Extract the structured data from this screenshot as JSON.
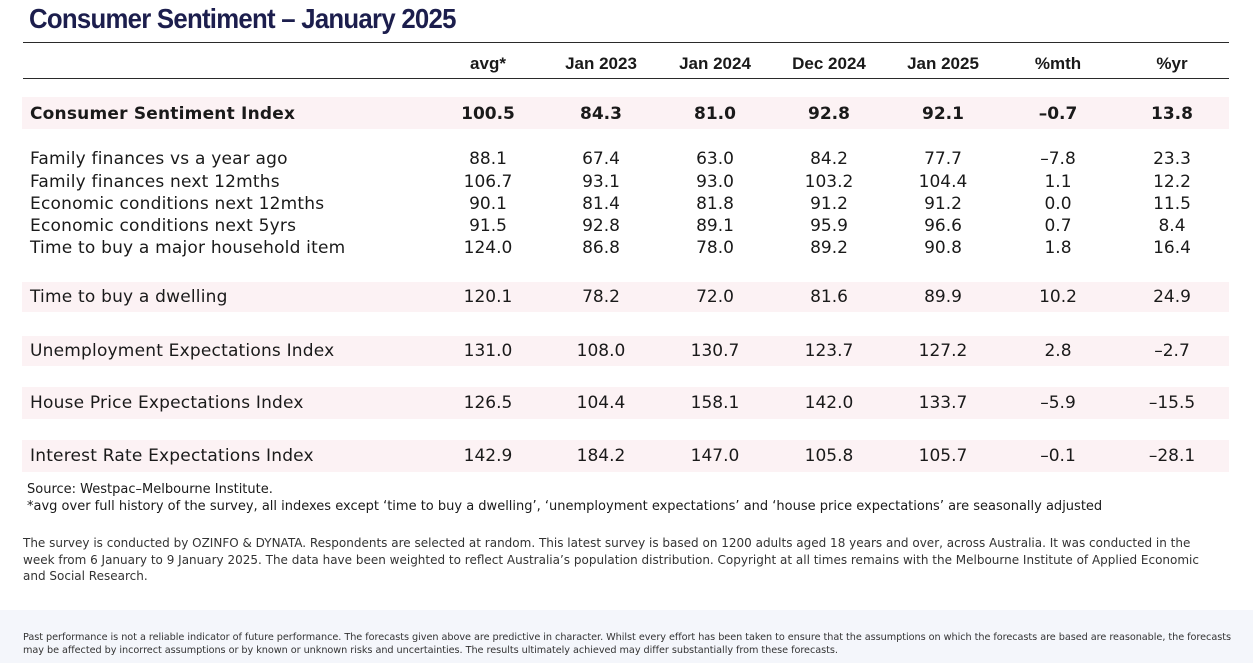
{
  "title": "Consumer Sentiment – January 2025",
  "columns": [
    "avg*",
    "Jan 2023",
    "Jan 2024",
    "Dec 2024",
    "Jan 2025",
    "%mth",
    "%yr"
  ],
  "rows": [
    {
      "label": "Consumer Sentiment Index",
      "values": [
        "100.5",
        "84.3",
        "81.0",
        "92.8",
        "92.1",
        "–0.7",
        "13.8"
      ]
    },
    {
      "label": "Family finances vs a year ago",
      "values": [
        "88.1",
        "67.4",
        "63.0",
        "84.2",
        "77.7",
        "–7.8",
        "23.3"
      ]
    },
    {
      "label": "Family finances next 12mths",
      "values": [
        "106.7",
        "93.1",
        "93.0",
        "103.2",
        "104.4",
        "1.1",
        "12.2"
      ]
    },
    {
      "label": "Economic conditions next 12mths",
      "values": [
        "90.1",
        "81.4",
        "81.8",
        "91.2",
        "91.2",
        "0.0",
        "11.5"
      ]
    },
    {
      "label": "Economic conditions next 5yrs",
      "values": [
        "91.5",
        "92.8",
        "89.1",
        "95.9",
        "96.6",
        "0.7",
        "8.4"
      ]
    },
    {
      "label": "Time to buy a major household item",
      "values": [
        "124.0",
        "86.8",
        "78.0",
        "89.2",
        "90.8",
        "1.8",
        "16.4"
      ]
    },
    {
      "label": "Time to buy a dwelling",
      "values": [
        "120.1",
        "78.2",
        "72.0",
        "81.6",
        "89.9",
        "10.2",
        "24.9"
      ]
    },
    {
      "label": "Unemployment Expectations Index",
      "values": [
        "131.0",
        "108.0",
        "130.7",
        "123.7",
        "127.2",
        "2.8",
        "–2.7"
      ]
    },
    {
      "label": "House Price Expectations Index",
      "values": [
        "126.5",
        "104.4",
        "158.1",
        "142.0",
        "133.7",
        "–5.9",
        "–15.5"
      ]
    },
    {
      "label": "Interest Rate Expectations Index",
      "values": [
        "142.9",
        "184.2",
        "147.0",
        "105.8",
        "105.7",
        "–0.1",
        "–28.1"
      ]
    }
  ],
  "source_line": "Source: Westpac–Melbourne Institute.",
  "note_line": "*avg over full history of the survey, all indexes except ‘time to buy a dwelling’, ‘unemployment expectations’ and ‘house price expectations’ are seasonally adjusted",
  "survey_text": "The survey is conducted by OZINFO & DYNATA. Respondents are selected at random. This latest survey is based on 1200 adults aged 18 years and over, across Australia. It was conducted in the week from 6 January to 9 January 2025. The data have been weighted to reflect Australia’s population distribution. Copyright at all times remains with the Melbourne Institute of Applied Economic and Social Research.",
  "disclaimer_text": "Past performance is not a reliable indicator of future performance. The forecasts given above are predictive in character. Whilst every effort has been taken to ensure that the assumptions on which the forecasts are based are reasonable, the forecasts may be affected by incorrect assumptions or by known or unknown risks and uncertainties. The results ultimately achieved may differ substantially from these forecasts."
}
